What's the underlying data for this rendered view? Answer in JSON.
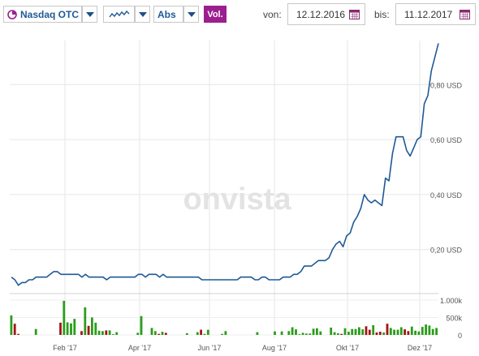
{
  "toolbar": {
    "exchange": "Nasdaq OTC",
    "mode": "Abs",
    "vol_button": "Vol.",
    "from_label": "von:",
    "from_date": "12.12.2016",
    "to_label": "bis:",
    "to_date": "11.12.2017"
  },
  "watermark": "onvista",
  "colors": {
    "line": "#1f5a96",
    "vol_up": "#2a9d1b",
    "vol_down": "#a31515",
    "accent": "#9b1f8f"
  },
  "chart_data": {
    "type": "line",
    "x_tick_labels": [
      "Feb '17",
      "Apr '17",
      "Jun '17",
      "Aug '17",
      "Okt '17",
      "Dez '17"
    ],
    "price_axis": {
      "labels": [
        "0,20 USD",
        "0,40 USD",
        "0,60 USD",
        "0,80 USD"
      ],
      "ticks": [
        0.2,
        0.4,
        0.6,
        0.8
      ],
      "ylim": [
        0.04,
        0.96
      ]
    },
    "volume_axis": {
      "labels": [
        "1.000k",
        "500k",
        "0"
      ],
      "ticks": [
        1000,
        500,
        0
      ],
      "ylim": [
        0,
        1000
      ]
    },
    "price": [
      0.1,
      0.09,
      0.07,
      0.08,
      0.08,
      0.09,
      0.09,
      0.1,
      0.1,
      0.1,
      0.1,
      0.11,
      0.12,
      0.12,
      0.11,
      0.11,
      0.11,
      0.11,
      0.11,
      0.11,
      0.1,
      0.11,
      0.1,
      0.1,
      0.1,
      0.1,
      0.1,
      0.09,
      0.1,
      0.1,
      0.1,
      0.1,
      0.1,
      0.1,
      0.1,
      0.1,
      0.11,
      0.11,
      0.1,
      0.11,
      0.11,
      0.11,
      0.1,
      0.11,
      0.1,
      0.1,
      0.1,
      0.1,
      0.1,
      0.1,
      0.1,
      0.1,
      0.1,
      0.1,
      0.09,
      0.09,
      0.09,
      0.09,
      0.09,
      0.09,
      0.09,
      0.09,
      0.09,
      0.09,
      0.09,
      0.1,
      0.1,
      0.1,
      0.1,
      0.09,
      0.09,
      0.1,
      0.1,
      0.09,
      0.09,
      0.09,
      0.09,
      0.1,
      0.1,
      0.1,
      0.11,
      0.11,
      0.12,
      0.14,
      0.14,
      0.14,
      0.15,
      0.16,
      0.16,
      0.16,
      0.17,
      0.2,
      0.22,
      0.23,
      0.21,
      0.25,
      0.26,
      0.3,
      0.32,
      0.35,
      0.4,
      0.38,
      0.37,
      0.38,
      0.37,
      0.36,
      0.46,
      0.45,
      0.55,
      0.61,
      0.61,
      0.61,
      0.56,
      0.54,
      0.57,
      0.6,
      0.61,
      0.73,
      0.76,
      0.85,
      0.9,
      0.95
    ],
    "volume": [
      560,
      320,
      30,
      0,
      0,
      0,
      0,
      170,
      0,
      0,
      0,
      0,
      0,
      0,
      350,
      980,
      360,
      330,
      460,
      0,
      110,
      790,
      260,
      500,
      350,
      120,
      110,
      130,
      130,
      20,
      80,
      0,
      0,
      0,
      0,
      0,
      60,
      540,
      0,
      0,
      200,
      110,
      30,
      90,
      60,
      0,
      0,
      0,
      0,
      0,
      50,
      0,
      0,
      80,
      150,
      30,
      150,
      0,
      0,
      0,
      30,
      110,
      0,
      0,
      0,
      0,
      0,
      0,
      0,
      0,
      80,
      0,
      0,
      0,
      0,
      100,
      0,
      100,
      0,
      110,
      220,
      160,
      20,
      60,
      40,
      40,
      180,
      190,
      100,
      0,
      0,
      210,
      80,
      50,
      30,
      190,
      90,
      170,
      170,
      220,
      160,
      250,
      150,
      280,
      70,
      90,
      70,
      320,
      200,
      150,
      150,
      220,
      160,
      110,
      240,
      120,
      100,
      230,
      300,
      270,
      170,
      200
    ]
  }
}
